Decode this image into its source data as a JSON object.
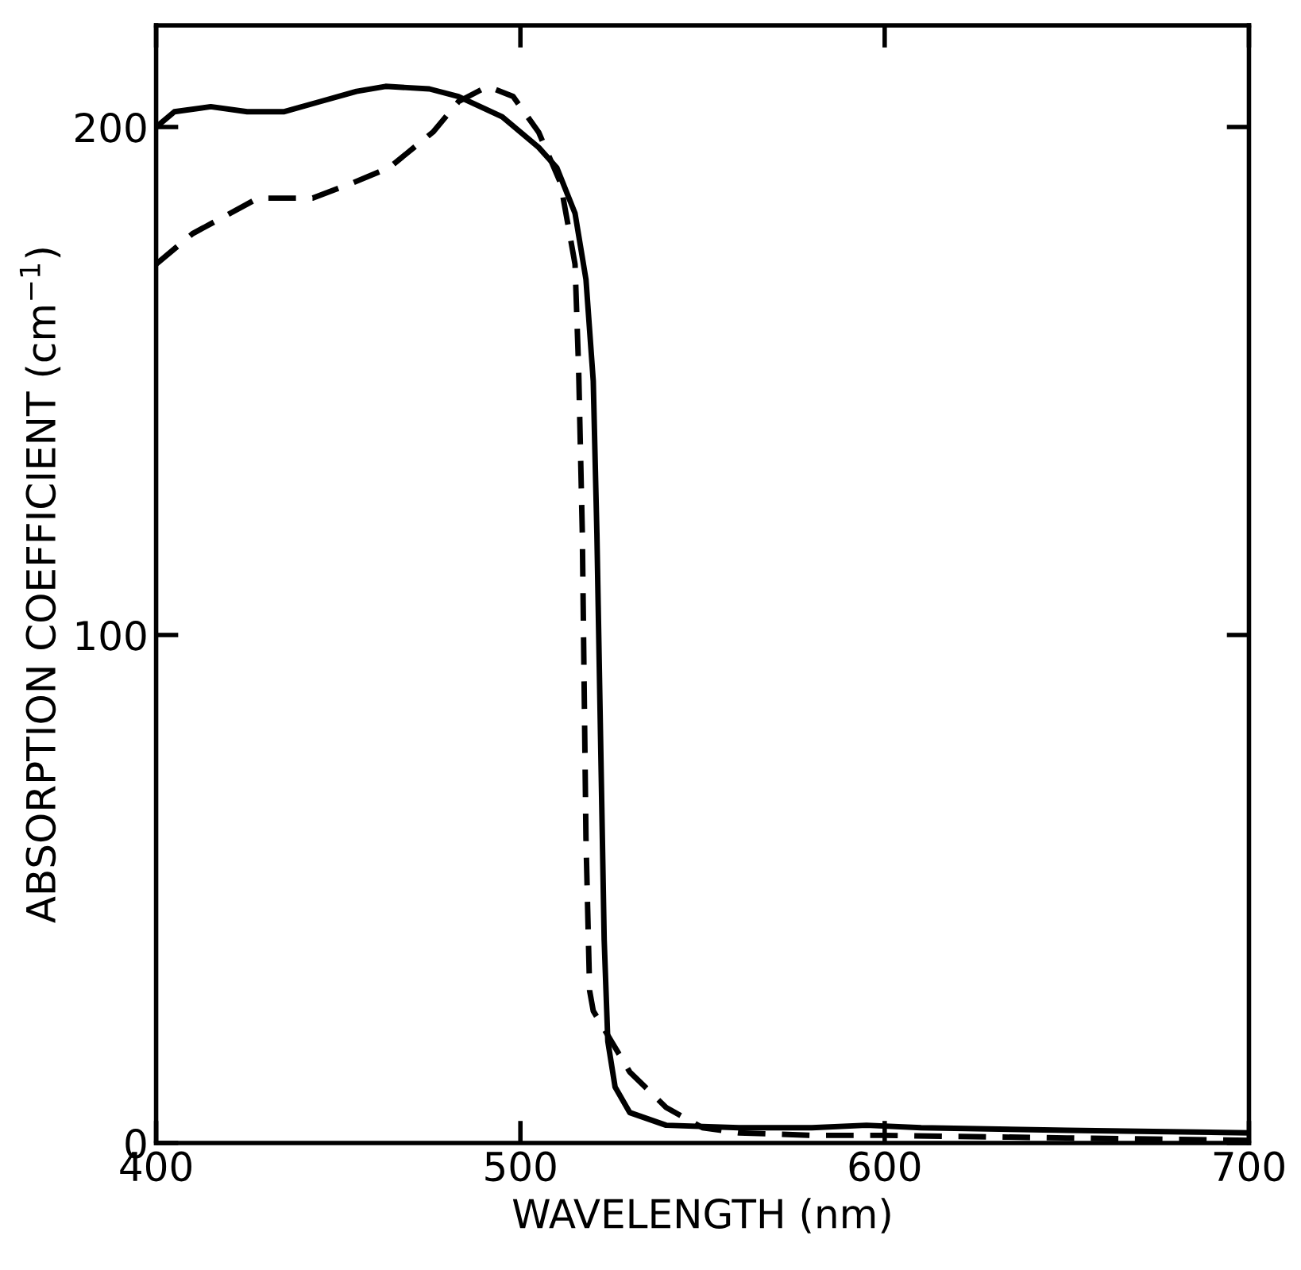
{
  "chart_data": {
    "type": "line",
    "xlabel": "WAVELENGTH (nm)",
    "ylabel": "ABSORPTION COEFFICIENT (cm$^{−1}$)",
    "xlim": [
      400,
      700
    ],
    "xticks": [
      400,
      500,
      600,
      700
    ],
    "ylim": [
      0,
      220
    ],
    "yticks": [
      0,
      100,
      200
    ],
    "grid": false,
    "legend": false,
    "series": [
      {
        "color": "#000000",
        "line_style": "solid",
        "x": [
          400,
          405,
          415,
          425,
          435,
          445,
          455,
          463,
          475,
          483,
          495,
          505,
          510,
          515,
          518,
          520,
          521,
          522,
          523,
          524,
          526,
          530,
          540,
          560,
          580,
          595,
          610,
          650,
          700
        ],
        "values": [
          200,
          203,
          204,
          203,
          203,
          205,
          207,
          208,
          207.5,
          206,
          202,
          196,
          192,
          183,
          170,
          150,
          120,
          80,
          40,
          20,
          11,
          6,
          3.5,
          3,
          3,
          3.5,
          3,
          2.5,
          2
        ]
      },
      {
        "color": "#000000",
        "line_style": "dashed",
        "x": [
          400,
          410,
          428,
          443,
          454,
          464,
          476,
          483,
          491,
          498,
          505,
          511,
          515,
          516,
          517,
          518,
          519,
          520,
          525,
          530,
          540,
          550,
          560,
          580,
          600,
          650,
          700
        ],
        "values": [
          173,
          179,
          186,
          186,
          189,
          192,
          199,
          205,
          208,
          206,
          199,
          189,
          173,
          152,
          120,
          60,
          30,
          26,
          20,
          14,
          7,
          3,
          2,
          1.5,
          1.5,
          1,
          0.5
        ]
      }
    ]
  }
}
